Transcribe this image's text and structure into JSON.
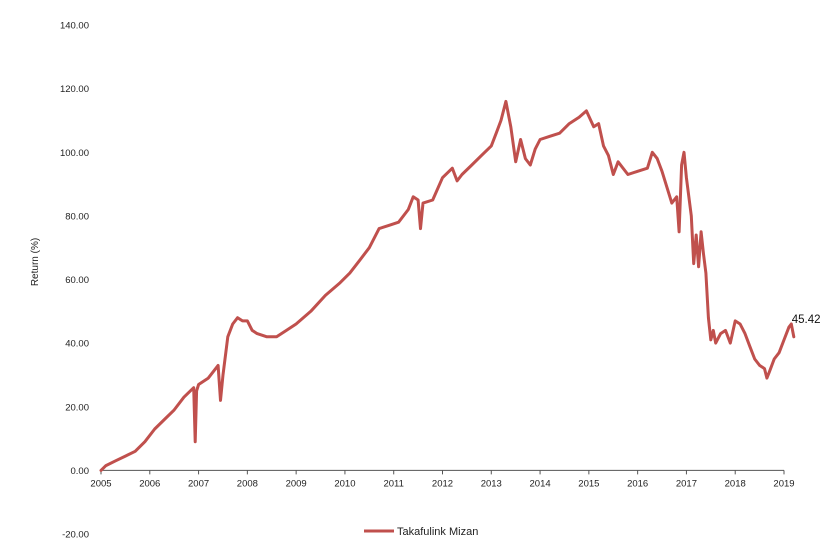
{
  "chart_data": {
    "type": "line",
    "title": "",
    "xlabel": "",
    "ylabel": "Return (%)",
    "ylim": [
      -20,
      140
    ],
    "xlim": [
      "2005",
      "2019"
    ],
    "y_ticks": [
      "-20.00",
      "0.00",
      "20.00",
      "40.00",
      "60.00",
      "80.00",
      "100.00",
      "120.00",
      "140.00"
    ],
    "x_ticks": [
      "2005",
      "2006",
      "2007",
      "2008",
      "2009",
      "2010",
      "2011",
      "2012",
      "2013",
      "2014",
      "2015",
      "2016",
      "2017",
      "2018",
      "2019"
    ],
    "grid": false,
    "legend": "bottom",
    "end_label": "45.42",
    "series": [
      {
        "name": "Takafulink Mizan",
        "color": "#c0504d",
        "x": [
          2005.0,
          2005.1,
          2005.3,
          2005.5,
          2005.7,
          2005.9,
          2006.1,
          2006.3,
          2006.5,
          2006.7,
          2006.9,
          2006.93,
          2006.96,
          2007.0,
          2007.2,
          2007.4,
          2007.45,
          2007.5,
          2007.6,
          2007.7,
          2007.8,
          2007.9,
          2008.0,
          2008.1,
          2008.2,
          2008.4,
          2008.6,
          2008.8,
          2009.0,
          2009.3,
          2009.6,
          2009.9,
          2010.1,
          2010.3,
          2010.5,
          2010.7,
          2010.9,
          2011.1,
          2011.3,
          2011.4,
          2011.5,
          2011.55,
          2011.6,
          2011.8,
          2012.0,
          2012.2,
          2012.3,
          2012.4,
          2012.6,
          2012.8,
          2013.0,
          2013.1,
          2013.2,
          2013.3,
          2013.4,
          2013.5,
          2013.6,
          2013.7,
          2013.8,
          2013.9,
          2014.0,
          2014.2,
          2014.4,
          2014.6,
          2014.8,
          2014.95,
          2015.1,
          2015.2,
          2015.3,
          2015.4,
          2015.5,
          2015.6,
          2015.8,
          2016.0,
          2016.2,
          2016.3,
          2016.4,
          2016.5,
          2016.6,
          2016.7,
          2016.8,
          2016.85,
          2016.9,
          2016.95,
          2017.0,
          2017.1,
          2017.15,
          2017.2,
          2017.25,
          2017.3,
          2017.35,
          2017.4,
          2017.45,
          2017.5,
          2017.55,
          2017.6,
          2017.7,
          2017.8,
          2017.9,
          2018.0,
          2018.1,
          2018.2,
          2018.3,
          2018.4,
          2018.5,
          2018.6,
          2018.65,
          2018.7,
          2018.8,
          2018.9,
          2019.0,
          2019.1,
          2019.15,
          2019.2
        ],
        "values": [
          0.0,
          1.5,
          3.0,
          4.5,
          6.0,
          9.0,
          13.0,
          16.0,
          19.0,
          23.0,
          26.0,
          9.0,
          25.0,
          27.0,
          29.0,
          33.0,
          22.0,
          30.0,
          42.0,
          46.0,
          48.0,
          47.0,
          47.0,
          44.0,
          43.0,
          42.0,
          42.0,
          44.0,
          46.0,
          50.0,
          55.0,
          59.0,
          62.0,
          66.0,
          70.0,
          76.0,
          77.0,
          78.0,
          82.0,
          86.0,
          85.0,
          76.0,
          84.0,
          85.0,
          92.0,
          95.0,
          91.0,
          93.0,
          96.0,
          99.0,
          102.0,
          106.0,
          110.0,
          116.0,
          108.0,
          97.0,
          104.0,
          98.0,
          96.0,
          101.0,
          104.0,
          105.0,
          106.0,
          109.0,
          111.0,
          113.0,
          108.0,
          109.0,
          102.0,
          99.0,
          93.0,
          97.0,
          93.0,
          94.0,
          95.0,
          100.0,
          98.0,
          94.0,
          89.0,
          84.0,
          86.0,
          75.0,
          96.0,
          100.0,
          92.0,
          80.0,
          65.0,
          74.0,
          64.0,
          75.0,
          68.0,
          62.0,
          48.0,
          41.0,
          44.0,
          40.0,
          43.0,
          44.0,
          40.0,
          47.0,
          46.0,
          43.0,
          39.0,
          35.0,
          33.0,
          32.0,
          29.0,
          31.0,
          35.0,
          37.0,
          41.0,
          45.0,
          46.0,
          42.0
        ]
      }
    ]
  }
}
